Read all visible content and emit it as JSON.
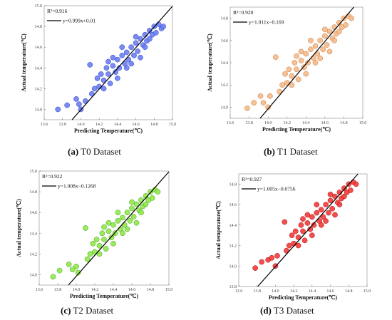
{
  "panels": [
    {
      "caption_letter": "(a)",
      "caption_text": "T0 Dataset",
      "r2": "R²=0.916",
      "equation": "y=0.999x+0.01",
      "color": "#6b7ef0",
      "edge": "#2b3fd0"
    },
    {
      "caption_letter": "(b)",
      "caption_text": "T1 Dataset",
      "r2": "R²=0.920",
      "equation": "y=1.011x−0.169",
      "color": "#f5b98a",
      "edge": "#c8783a"
    },
    {
      "caption_letter": "(c)",
      "caption_text": "T2 Dataset",
      "r2": "R²=0.922",
      "equation": "y=1.008x−0.1268",
      "color": "#8fe84a",
      "edge": "#3f9e12"
    },
    {
      "caption_letter": "(d)",
      "caption_text": "T3 Dataset",
      "r2": "R²=0.927",
      "equation": "y=1.005x−0.0756",
      "color": "#f23b3b",
      "edge": "#b01010"
    }
  ],
  "chart_data": [
    {
      "type": "scatter",
      "xlabel": "Predicting Temperature(℃)",
      "ylabel": "Actual temperature(℃)",
      "xlim": [
        13.6,
        15.0
      ],
      "ylim": [
        13.9,
        15.0
      ],
      "xticks": [
        "13.6",
        "13.8",
        "14.0",
        "14.2",
        "14.4",
        "14.6",
        "14.8",
        "15.0"
      ],
      "yticks": [
        "14.0",
        "14.2",
        "14.4",
        "14.6",
        "14.8",
        "15.0"
      ],
      "fit": {
        "slope": 0.999,
        "intercept": 0.01
      },
      "points": [
        [
          13.75,
          14.0
        ],
        [
          13.85,
          14.04
        ],
        [
          13.95,
          14.1
        ],
        [
          13.98,
          14.05
        ],
        [
          14.0,
          14.0
        ],
        [
          14.05,
          14.08
        ],
        [
          14.1,
          14.43
        ],
        [
          14.12,
          14.15
        ],
        [
          14.15,
          14.2
        ],
        [
          14.18,
          14.3
        ],
        [
          14.2,
          14.22
        ],
        [
          14.22,
          14.34
        ],
        [
          14.25,
          14.28
        ],
        [
          14.28,
          14.4
        ],
        [
          14.3,
          14.34
        ],
        [
          14.32,
          14.25
        ],
        [
          14.35,
          14.42
        ],
        [
          14.38,
          14.36
        ],
        [
          14.4,
          14.48
        ],
        [
          14.42,
          14.4
        ],
        [
          14.45,
          14.52
        ],
        [
          14.48,
          14.44
        ],
        [
          14.5,
          14.55
        ],
        [
          14.52,
          14.48
        ],
        [
          14.55,
          14.6
        ],
        [
          14.58,
          14.52
        ],
        [
          14.6,
          14.64
        ],
        [
          14.62,
          14.56
        ],
        [
          14.65,
          14.68
        ],
        [
          14.68,
          14.62
        ],
        [
          14.7,
          14.72
        ],
        [
          14.72,
          14.66
        ],
        [
          14.75,
          14.76
        ],
        [
          14.78,
          14.72
        ],
        [
          14.8,
          14.8
        ],
        [
          14.82,
          14.74
        ],
        [
          14.85,
          14.82
        ],
        [
          14.88,
          14.78
        ],
        [
          14.9,
          14.8
        ],
        [
          14.3,
          14.46
        ],
        [
          14.4,
          14.3
        ],
        [
          14.5,
          14.4
        ],
        [
          14.6,
          14.7
        ],
        [
          14.7,
          14.6
        ],
        [
          14.45,
          14.6
        ],
        [
          14.55,
          14.44
        ],
        [
          14.25,
          14.2
        ],
        [
          14.35,
          14.5
        ],
        [
          14.65,
          14.5
        ],
        [
          14.75,
          14.68
        ]
      ]
    },
    {
      "type": "scatter",
      "xlabel": "Predicting Temperature(℃)",
      "ylabel": "Actual temperature(℃)",
      "xlim": [
        13.6,
        15.0
      ],
      "ylim": [
        13.9,
        14.9
      ],
      "xticks": [
        "13.6",
        "13.8",
        "14.0",
        "14.2",
        "14.4",
        "14.6",
        "14.8",
        "15.0"
      ],
      "yticks": [
        "14.0",
        "14.2",
        "14.4",
        "14.6",
        "14.8"
      ],
      "fit": {
        "slope": 1.011,
        "intercept": -0.169
      },
      "points": [
        [
          13.78,
          13.99
        ],
        [
          13.85,
          14.04
        ],
        [
          13.92,
          14.1
        ],
        [
          13.95,
          14.04
        ],
        [
          14.0,
          14.0
        ],
        [
          14.02,
          14.1
        ],
        [
          14.08,
          14.45
        ],
        [
          14.12,
          14.14
        ],
        [
          14.15,
          14.2
        ],
        [
          14.18,
          14.3
        ],
        [
          14.2,
          14.22
        ],
        [
          14.22,
          14.34
        ],
        [
          14.25,
          14.28
        ],
        [
          14.28,
          14.4
        ],
        [
          14.3,
          14.34
        ],
        [
          14.32,
          14.25
        ],
        [
          14.35,
          14.42
        ],
        [
          14.38,
          14.36
        ],
        [
          14.4,
          14.48
        ],
        [
          14.42,
          14.4
        ],
        [
          14.45,
          14.52
        ],
        [
          14.48,
          14.44
        ],
        [
          14.5,
          14.55
        ],
        [
          14.52,
          14.48
        ],
        [
          14.55,
          14.6
        ],
        [
          14.58,
          14.52
        ],
        [
          14.6,
          14.64
        ],
        [
          14.62,
          14.56
        ],
        [
          14.65,
          14.68
        ],
        [
          14.68,
          14.62
        ],
        [
          14.7,
          14.72
        ],
        [
          14.72,
          14.66
        ],
        [
          14.75,
          14.76
        ],
        [
          14.78,
          14.72
        ],
        [
          14.8,
          14.8
        ],
        [
          14.82,
          14.74
        ],
        [
          14.85,
          14.82
        ],
        [
          14.88,
          14.8
        ],
        [
          14.3,
          14.46
        ],
        [
          14.4,
          14.3
        ],
        [
          14.5,
          14.4
        ],
        [
          14.6,
          14.7
        ],
        [
          14.7,
          14.6
        ],
        [
          14.45,
          14.6
        ],
        [
          14.55,
          14.44
        ],
        [
          14.25,
          14.2
        ],
        [
          14.35,
          14.5
        ],
        [
          14.65,
          14.5
        ],
        [
          14.75,
          14.68
        ]
      ]
    },
    {
      "type": "scatter",
      "xlabel": "Predicting Temperature(℃)",
      "ylabel": "Actual temperature(℃)",
      "xlim": [
        13.6,
        15.0
      ],
      "ylim": [
        13.9,
        15.0
      ],
      "xticks": [
        "13.6",
        "13.8",
        "14.0",
        "14.2",
        "14.4",
        "14.6",
        "14.8",
        "15.0"
      ],
      "yticks": [
        "14.0",
        "14.2",
        "14.4",
        "14.6",
        "14.8",
        "15.0"
      ],
      "fit": {
        "slope": 1.008,
        "intercept": -0.1268
      },
      "points": [
        [
          13.75,
          13.98
        ],
        [
          13.82,
          14.04
        ],
        [
          13.92,
          14.1
        ],
        [
          13.96,
          14.05
        ],
        [
          14.0,
          14.08
        ],
        [
          14.02,
          14.02
        ],
        [
          14.1,
          14.45
        ],
        [
          14.12,
          14.15
        ],
        [
          14.15,
          14.2
        ],
        [
          14.18,
          14.3
        ],
        [
          14.2,
          14.22
        ],
        [
          14.22,
          14.34
        ],
        [
          14.25,
          14.28
        ],
        [
          14.28,
          14.4
        ],
        [
          14.3,
          14.34
        ],
        [
          14.32,
          14.25
        ],
        [
          14.35,
          14.42
        ],
        [
          14.38,
          14.36
        ],
        [
          14.4,
          14.48
        ],
        [
          14.42,
          14.4
        ],
        [
          14.45,
          14.52
        ],
        [
          14.48,
          14.44
        ],
        [
          14.5,
          14.55
        ],
        [
          14.52,
          14.48
        ],
        [
          14.55,
          14.6
        ],
        [
          14.58,
          14.52
        ],
        [
          14.6,
          14.64
        ],
        [
          14.62,
          14.56
        ],
        [
          14.65,
          14.68
        ],
        [
          14.68,
          14.62
        ],
        [
          14.7,
          14.72
        ],
        [
          14.72,
          14.66
        ],
        [
          14.75,
          14.76
        ],
        [
          14.78,
          14.72
        ],
        [
          14.8,
          14.8
        ],
        [
          14.82,
          14.74
        ],
        [
          14.85,
          14.82
        ],
        [
          14.88,
          14.8
        ],
        [
          14.3,
          14.46
        ],
        [
          14.4,
          14.3
        ],
        [
          14.5,
          14.4
        ],
        [
          14.6,
          14.7
        ],
        [
          14.7,
          14.6
        ],
        [
          14.45,
          14.6
        ],
        [
          14.55,
          14.44
        ],
        [
          14.25,
          14.2
        ],
        [
          14.35,
          14.5
        ],
        [
          14.65,
          14.5
        ],
        [
          14.75,
          14.68
        ]
      ]
    },
    {
      "type": "scatter",
      "xlabel": "Predicting Temperature(℃)",
      "ylabel": "Actual temperature(℃)",
      "xlim": [
        13.6,
        15.0
      ],
      "ylim": [
        13.8,
        14.9
      ],
      "xticks": [
        "13.6",
        "13.8",
        "14.0",
        "14.2",
        "14.4",
        "14.6",
        "14.8",
        "15.0"
      ],
      "yticks": [
        "13.8",
        "14.0",
        "14.2",
        "14.4",
        "14.6",
        "14.8"
      ],
      "fit": {
        "slope": 1.005,
        "intercept": -0.0756
      },
      "points": [
        [
          13.78,
          13.98
        ],
        [
          13.85,
          14.04
        ],
        [
          13.92,
          14.06
        ],
        [
          13.96,
          14.08
        ],
        [
          14.0,
          14.0
        ],
        [
          14.02,
          14.1
        ],
        [
          14.1,
          14.43
        ],
        [
          14.12,
          14.15
        ],
        [
          14.15,
          14.2
        ],
        [
          14.18,
          14.3
        ],
        [
          14.2,
          14.22
        ],
        [
          14.22,
          14.34
        ],
        [
          14.25,
          14.28
        ],
        [
          14.28,
          14.4
        ],
        [
          14.3,
          14.34
        ],
        [
          14.32,
          14.25
        ],
        [
          14.35,
          14.42
        ],
        [
          14.38,
          14.36
        ],
        [
          14.4,
          14.48
        ],
        [
          14.42,
          14.4
        ],
        [
          14.45,
          14.52
        ],
        [
          14.48,
          14.44
        ],
        [
          14.5,
          14.55
        ],
        [
          14.52,
          14.48
        ],
        [
          14.55,
          14.6
        ],
        [
          14.58,
          14.52
        ],
        [
          14.6,
          14.64
        ],
        [
          14.62,
          14.56
        ],
        [
          14.65,
          14.68
        ],
        [
          14.68,
          14.62
        ],
        [
          14.7,
          14.72
        ],
        [
          14.72,
          14.66
        ],
        [
          14.75,
          14.76
        ],
        [
          14.78,
          14.72
        ],
        [
          14.8,
          14.8
        ],
        [
          14.82,
          14.74
        ],
        [
          14.85,
          14.82
        ],
        [
          14.88,
          14.8
        ],
        [
          14.3,
          14.46
        ],
        [
          14.4,
          14.3
        ],
        [
          14.5,
          14.4
        ],
        [
          14.6,
          14.7
        ],
        [
          14.7,
          14.6
        ],
        [
          14.45,
          14.6
        ],
        [
          14.55,
          14.44
        ],
        [
          14.25,
          14.2
        ],
        [
          14.35,
          14.5
        ],
        [
          14.65,
          14.5
        ],
        [
          14.75,
          14.68
        ]
      ]
    }
  ]
}
